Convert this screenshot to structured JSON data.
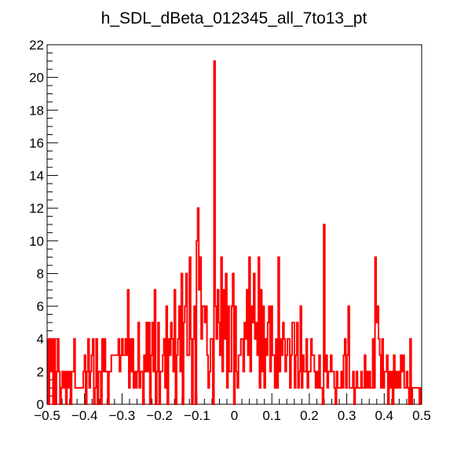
{
  "chart_data": {
    "type": "histogram",
    "title": "h_SDL_dBeta_012345_all_7to13_pt",
    "xlabel": "",
    "ylabel": "",
    "xlim": [
      -0.5,
      0.5
    ],
    "ylim": [
      0,
      22
    ],
    "grid": false,
    "legend": "none",
    "line_color": "#ff0000",
    "x_tick_labels": [
      "−0.5",
      "−0.4",
      "−0.3",
      "−0.2",
      "−0.1",
      "0",
      "0.1",
      "0.2",
      "0.3",
      "0.4",
      "0.5"
    ],
    "x_tick_values": [
      -0.5,
      -0.4,
      -0.3,
      -0.2,
      -0.1,
      0,
      0.1,
      0.2,
      0.3,
      0.4,
      0.5
    ],
    "y_tick_labels": [
      "0",
      "2",
      "4",
      "6",
      "8",
      "10",
      "12",
      "14",
      "16",
      "18",
      "20",
      "22"
    ],
    "y_tick_values": [
      0,
      2,
      4,
      6,
      8,
      10,
      12,
      14,
      16,
      18,
      20,
      22
    ],
    "bin_range": [
      -0.5,
      0.5
    ],
    "values": [
      4,
      0,
      4,
      2,
      4,
      0,
      4,
      0,
      2,
      4,
      2,
      0,
      1,
      2,
      1,
      2,
      0,
      2,
      1,
      2,
      0,
      2,
      2,
      4,
      1,
      1,
      1,
      1,
      1,
      1,
      1,
      2,
      3,
      0,
      2,
      4,
      1,
      2,
      3,
      4,
      0,
      1,
      4,
      0,
      2,
      2,
      0,
      4,
      2,
      4,
      2,
      2,
      0,
      2,
      2,
      3,
      3,
      3,
      3,
      3,
      3,
      4,
      2,
      3,
      4,
      3,
      3,
      4,
      3,
      7,
      1,
      4,
      2,
      4,
      1,
      2,
      1,
      2,
      5,
      1,
      2,
      2,
      0,
      3,
      2,
      5,
      2,
      5,
      0,
      3,
      5,
      2,
      7,
      0,
      2,
      5,
      0,
      2,
      2,
      3,
      4,
      1,
      6,
      0,
      4,
      3,
      5,
      4,
      2,
      7,
      0,
      3,
      4,
      6,
      2,
      8,
      0,
      5,
      6,
      8,
      3,
      3,
      9,
      4,
      0,
      4,
      6,
      0,
      10,
      12,
      7,
      9,
      4,
      6,
      6,
      5,
      6,
      3,
      1,
      2,
      4,
      4,
      0,
      21,
      6,
      4,
      7,
      5,
      3,
      9,
      2,
      7,
      4,
      8,
      1,
      6,
      2,
      2,
      6,
      8,
      0,
      6,
      2,
      1,
      3,
      3,
      4,
      4,
      2,
      5,
      4,
      7,
      3,
      9,
      2,
      6,
      5,
      8,
      4,
      5,
      3,
      9,
      1,
      7,
      2,
      6,
      1,
      4,
      3,
      5,
      6,
      2,
      6,
      3,
      3,
      1,
      4,
      1,
      9,
      2,
      4,
      3,
      5,
      4,
      2,
      3,
      4,
      4,
      1,
      3,
      5,
      5,
      1,
      3,
      5,
      1,
      2,
      6,
      1,
      3,
      2,
      2,
      4,
      1,
      2,
      2,
      4,
      3,
      3,
      2,
      1,
      2,
      1,
      3,
      1,
      1,
      0,
      11,
      2,
      3,
      1,
      2,
      2,
      3,
      2,
      2,
      1,
      0,
      2,
      1,
      1,
      1,
      2,
      1,
      3,
      4,
      1,
      3,
      6,
      1,
      1,
      1,
      2,
      0,
      1,
      2,
      1,
      1,
      1,
      2,
      1,
      1,
      3,
      1,
      2,
      1,
      2,
      1,
      1,
      4,
      1,
      9,
      5,
      6,
      4,
      3,
      1,
      4,
      1,
      2,
      2,
      3,
      0,
      2,
      1,
      2,
      0,
      3,
      1,
      2,
      1,
      2,
      1,
      3,
      2,
      3,
      1,
      1,
      2,
      1,
      0,
      4,
      0,
      1,
      1,
      1,
      1,
      1,
      1,
      0,
      1
    ]
  }
}
